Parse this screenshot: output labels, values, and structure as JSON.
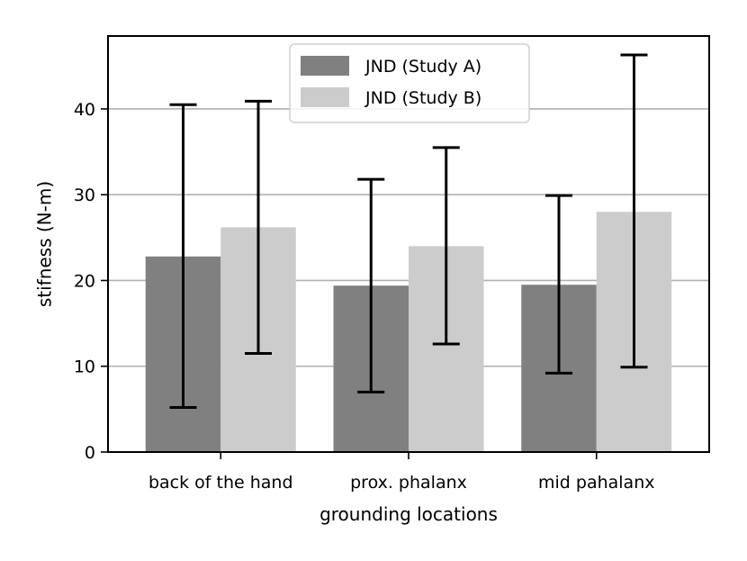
{
  "chart_data": {
    "type": "bar",
    "title": "",
    "xlabel": "grounding locations",
    "ylabel": "stifness (N-m)",
    "categories": [
      "back of the hand",
      "prox. phalanx",
      "mid pahalanx"
    ],
    "ylim": [
      0,
      48.5
    ],
    "yticks": [
      0,
      10,
      20,
      30,
      40
    ],
    "grid": "horizontal",
    "legend_position": "top-center",
    "series": [
      {
        "name": "JND (Study A)",
        "color": "#808080",
        "values": [
          22.8,
          19.4,
          19.5
        ],
        "error_low": [
          5.2,
          7.0,
          9.2
        ],
        "error_high": [
          40.5,
          31.8,
          29.9
        ]
      },
      {
        "name": "JND (Study B)",
        "color": "#cccccc",
        "values": [
          26.2,
          24.0,
          28.0
        ],
        "error_low": [
          11.5,
          12.6,
          9.9
        ],
        "error_high": [
          40.9,
          35.5,
          46.3
        ]
      }
    ]
  }
}
